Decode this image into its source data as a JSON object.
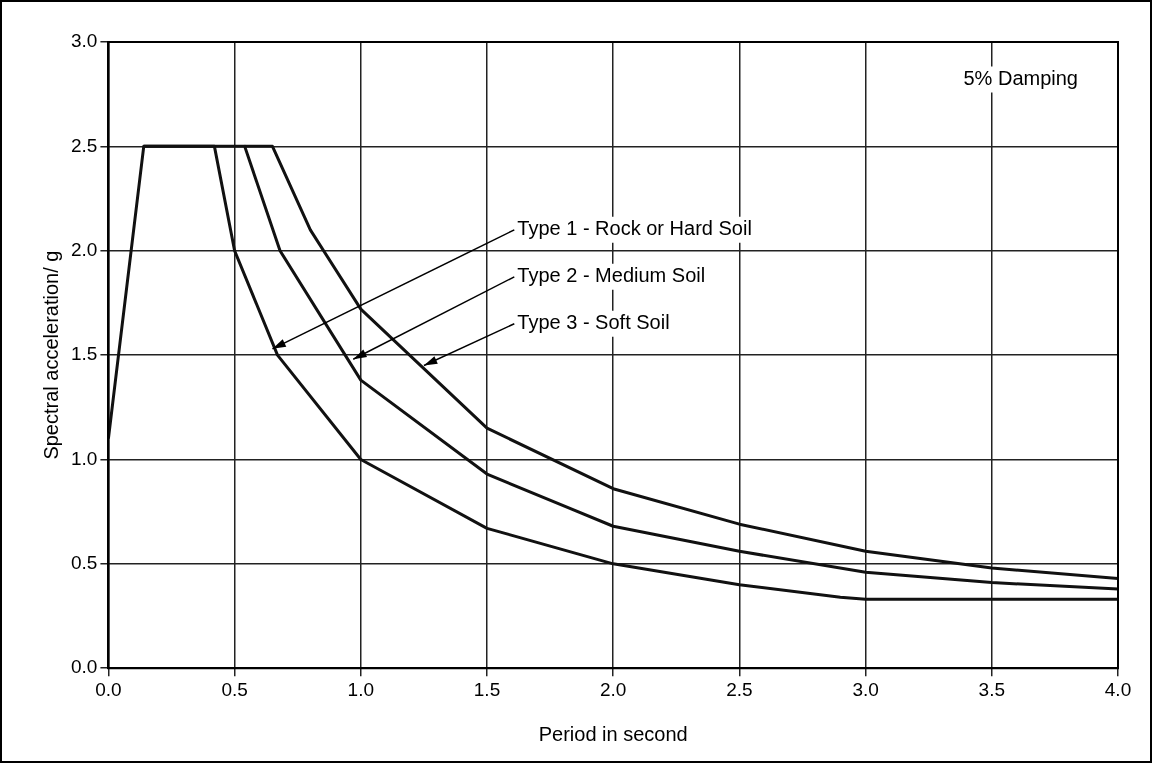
{
  "chart_data": {
    "type": "line",
    "xlabel": "Period in second",
    "ylabel": "Spectral acceleration/ g",
    "xlim": [
      0,
      4
    ],
    "ylim": [
      0,
      3
    ],
    "xticks": [
      {
        "value": 0,
        "label": "0.0"
      },
      {
        "value": 0.5,
        "label": "0.5"
      },
      {
        "value": 1,
        "label": "1.0"
      },
      {
        "value": 1.5,
        "label": "1.5"
      },
      {
        "value": 2,
        "label": "2.0"
      },
      {
        "value": 2.5,
        "label": "2.5"
      },
      {
        "value": 3,
        "label": "3.0"
      },
      {
        "value": 3.5,
        "label": "3.5"
      },
      {
        "value": 4,
        "label": "4.0"
      }
    ],
    "yticks": [
      {
        "value": 0,
        "label": "0.0"
      },
      {
        "value": 0.5,
        "label": "0.5"
      },
      {
        "value": 1,
        "label": "1.0"
      },
      {
        "value": 1.5,
        "label": "1.5"
      },
      {
        "value": 2,
        "label": "2.0"
      },
      {
        "value": 2.5,
        "label": "2.5"
      },
      {
        "value": 3,
        "label": "3.0"
      }
    ],
    "grid": true,
    "marker": "none",
    "line_style": "solid",
    "series": [
      {
        "color": "#111111",
        "x": [
          0,
          0.14,
          0.42,
          0.5,
          0.67,
          1.0,
          1.5,
          2.0,
          2.5,
          2.9,
          3.0,
          3.5,
          4.0
        ],
        "values": [
          1.1,
          2.5,
          2.5,
          2.0,
          1.5,
          1.0,
          0.67,
          0.5,
          0.4,
          0.34,
          0.33,
          0.33,
          0.33
        ]
      },
      {
        "color": "#111111",
        "x": [
          0.14,
          0.54,
          0.68,
          1.0,
          1.5,
          2.0,
          2.5,
          3.0,
          3.5,
          4.0
        ],
        "values": [
          2.5,
          2.5,
          2.0,
          1.38,
          0.93,
          0.68,
          0.56,
          0.46,
          0.41,
          0.38
        ]
      },
      {
        "color": "#111111",
        "x": [
          0.54,
          0.65,
          0.8,
          1.0,
          1.5,
          2.0,
          2.5,
          3.0,
          3.5,
          4.0
        ],
        "values": [
          2.5,
          2.5,
          2.1,
          1.72,
          1.15,
          0.86,
          0.69,
          0.56,
          0.48,
          0.43
        ]
      }
    ],
    "annotations": [
      "5% Damping",
      {
        "text": "Type 1 - Rock or Hard Soil",
        "x": 0.65,
        "y": 1.53
      },
      {
        "text": "Type 2 - Medium Soil",
        "x": 0.97,
        "y": 1.48
      },
      {
        "text": "Type 3 - Soft Soil",
        "x": 1.25,
        "y": 1.45
      }
    ]
  }
}
